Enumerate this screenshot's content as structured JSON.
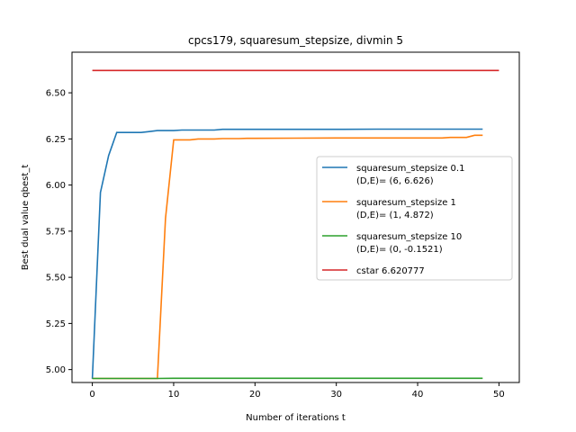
{
  "chart_data": {
    "type": "line",
    "title": "cpcs179, squaresum_stepsize, divmin 5",
    "xlabel": "Number of iterations t",
    "ylabel": "Best dual value qbest_t",
    "xlim": [
      -2.5,
      52.5
    ],
    "ylim": [
      4.93,
      6.72
    ],
    "xticks": [
      0,
      10,
      20,
      30,
      40,
      50
    ],
    "xtick_labels": [
      "0",
      "10",
      "20",
      "30",
      "40",
      "50"
    ],
    "yticks": [
      5.0,
      5.25,
      5.5,
      5.75,
      6.0,
      6.25,
      6.5
    ],
    "ytick_labels": [
      "5.00",
      "5.25",
      "5.50",
      "5.75",
      "6.00",
      "6.25",
      "6.50"
    ],
    "legend_position": "center-right",
    "series": [
      {
        "name": "squaresum_stepsize 0.1\n(D,E)= (6, 6.626)",
        "color": "#1f77b4",
        "x": [
          0,
          1,
          2,
          3,
          4,
          5,
          6,
          7,
          8,
          9,
          10,
          11,
          12,
          13,
          14,
          15,
          16,
          17,
          18,
          19,
          20,
          25,
          30,
          35,
          40,
          45,
          48
        ],
        "y": [
          4.95,
          5.96,
          6.16,
          6.285,
          6.285,
          6.285,
          6.285,
          6.29,
          6.295,
          6.295,
          6.295,
          6.298,
          6.298,
          6.298,
          6.298,
          6.298,
          6.302,
          6.302,
          6.302,
          6.302,
          6.302,
          6.302,
          6.302,
          6.303,
          6.303,
          6.303,
          6.303
        ]
      },
      {
        "name": "squaresum_stepsize 1\n(D,E)= (1, 4.872)",
        "color": "#ff7f0e",
        "x": [
          0,
          8,
          9,
          10,
          11,
          12,
          13,
          14,
          15,
          16,
          17,
          18,
          19,
          20,
          25,
          30,
          35,
          40,
          43,
          44,
          45,
          46,
          47,
          48
        ],
        "y": [
          4.952,
          4.952,
          5.82,
          6.245,
          6.245,
          6.245,
          6.25,
          6.25,
          6.25,
          6.252,
          6.252,
          6.252,
          6.253,
          6.253,
          6.254,
          6.255,
          6.255,
          6.255,
          6.255,
          6.258,
          6.258,
          6.258,
          6.27,
          6.27
        ]
      },
      {
        "name": "squaresum_stepsize 10\n(D,E)= (0, -0.1521)",
        "color": "#2ca02c",
        "x": [
          0,
          8,
          10,
          20,
          30,
          40,
          48
        ],
        "y": [
          4.952,
          4.952,
          4.953,
          4.953,
          4.953,
          4.953,
          4.953
        ]
      },
      {
        "name": "cstar 6.620777",
        "color": "#d62728",
        "x": [
          0,
          50
        ],
        "y": [
          6.620777,
          6.620777
        ]
      }
    ]
  }
}
